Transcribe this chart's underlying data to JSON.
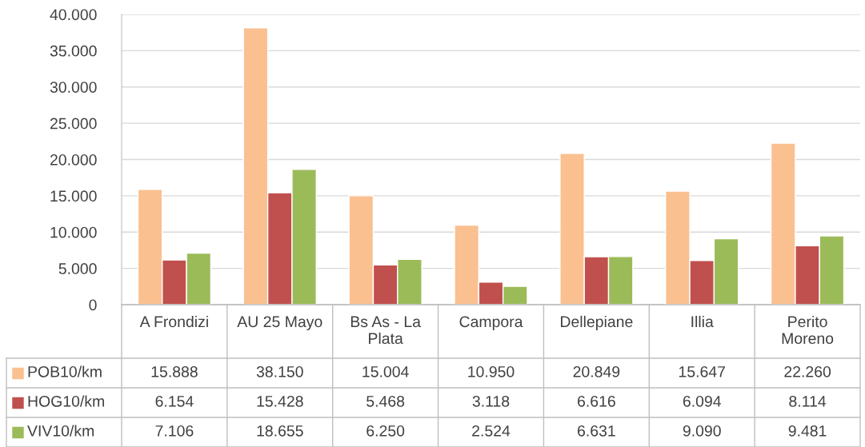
{
  "chart_data": {
    "type": "bar",
    "categories": [
      "A Frondizi",
      "AU 25 Mayo",
      "Bs As - La\nPlata",
      "Campora",
      "Dellepiane",
      "Illia",
      "Perito\nMoreno"
    ],
    "series": [
      {
        "name": "POB10/km",
        "color": "#fac090",
        "values": [
          15888,
          38150,
          15004,
          10950,
          20849,
          15647,
          22260
        ],
        "value_labels": [
          "15.888",
          "38.150",
          "15.004",
          "10.950",
          "20.849",
          "15.647",
          "22.260"
        ]
      },
      {
        "name": "HOG10/km",
        "color": "#c0504d",
        "values": [
          6154,
          15428,
          5468,
          3118,
          6616,
          6094,
          8114
        ],
        "value_labels": [
          "6.154",
          "15.428",
          "5.468",
          "3.118",
          "6.616",
          "6.094",
          "8.114"
        ]
      },
      {
        "name": "VIV10/km",
        "color": "#9bbb59",
        "values": [
          7106,
          18655,
          6250,
          2524,
          6631,
          9090,
          9481
        ],
        "value_labels": [
          "7.106",
          "18.655",
          "6.250",
          "2.524",
          "6.631",
          "9.090",
          "9.481"
        ]
      }
    ],
    "ylim": [
      0,
      40000
    ],
    "yticks": [
      0,
      {
        "value": 5000,
        "label": "5.000"
      },
      {
        "value": 10000,
        "label": "10.000"
      },
      {
        "value": 15000,
        "label": "15.000"
      },
      {
        "value": 20000,
        "label": "20.000"
      },
      {
        "value": 25000,
        "label": "25.000"
      },
      {
        "value": 30000,
        "label": "30.000"
      },
      {
        "value": 35000,
        "label": "35.000"
      },
      {
        "value": 40000,
        "label": "40.000"
      }
    ],
    "grid": "y",
    "legend": "bottom left"
  }
}
